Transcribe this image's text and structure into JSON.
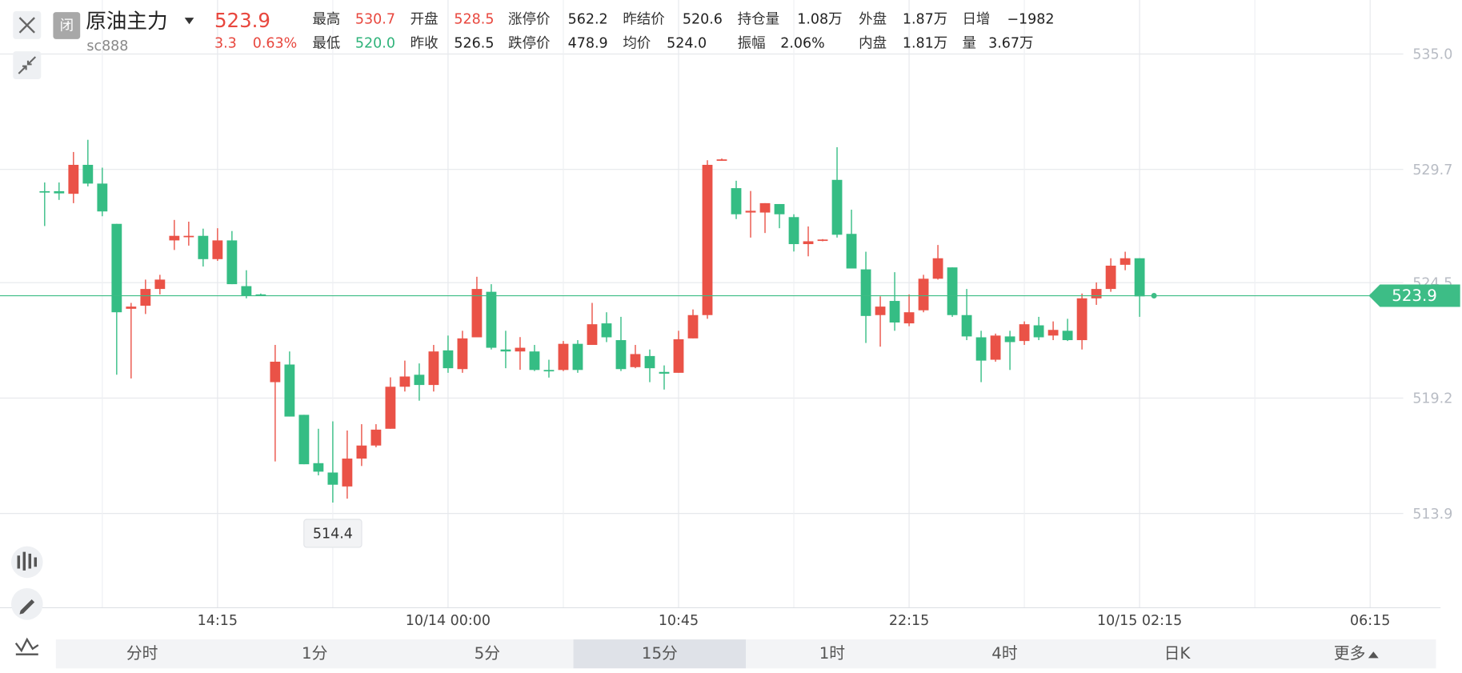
{
  "header": {
    "badge": "闭",
    "name": "原油主力",
    "symbol": "sc888",
    "price": "523.9",
    "change": "3.3",
    "change_pct": "0.63%",
    "stats": [
      [
        {
          "label": "最高",
          "value": "530.7",
          "color": "#e8473e"
        },
        {
          "label": "开盘",
          "value": "528.5",
          "color": "#e8473e"
        },
        {
          "label": "涨停价",
          "value": "562.2",
          "color": "#222"
        },
        {
          "label": "昨结价",
          "value": "520.6",
          "color": "#222"
        },
        {
          "label": "持仓量",
          "value": "1.08万",
          "color": "#222"
        },
        {
          "label": "外盘",
          "value": "1.87万",
          "color": "#222"
        },
        {
          "label": "日增",
          "value": "−1982",
          "color": "#222"
        }
      ],
      [
        {
          "label": "最低",
          "value": "520.0",
          "color": "#2fb37a"
        },
        {
          "label": "昨收",
          "value": "526.5",
          "color": "#222"
        },
        {
          "label": "跌停价",
          "value": "478.9",
          "color": "#222"
        },
        {
          "label": "均价",
          "value": "524.0",
          "color": "#222"
        },
        {
          "label": "振幅",
          "value": "2.06%",
          "color": "#222"
        },
        {
          "label": "内盘",
          "value": "1.81万",
          "color": "#222"
        },
        {
          "label": "量",
          "value": "3.67万",
          "color": "#222"
        }
      ]
    ]
  },
  "chart_data": {
    "type": "candlestick",
    "up_color": "#ea5247",
    "down_color": "#35bd84",
    "candles": {
      "open": [
        528.7,
        528.7,
        528.58,
        529.91,
        529.05,
        527.2,
        523.3,
        523.44,
        524.21,
        526.44,
        526.6,
        526.65,
        525.58,
        526.44,
        524.34,
        523.96,
        519.93,
        520.74,
        518.43,
        516.21,
        515.78,
        515.14,
        516.42,
        517.02,
        517.79,
        519.72,
        520.27,
        519.8,
        521.39,
        520.53,
        521.99,
        524.08,
        521.43,
        521.34,
        521.34,
        520.49,
        520.49,
        521.69,
        521.64,
        522.63,
        521.86,
        520.62,
        521.13,
        520.4,
        520.36,
        521.94,
        523.01,
        530.1,
        528.84,
        527.72,
        527.72,
        528.11,
        527.51,
        526.27,
        526.44,
        529.22,
        526.74,
        525.11,
        523.01,
        523.66,
        522.63,
        523.23,
        524.68,
        525.2,
        523.01,
        521.99,
        520.96,
        522.03,
        521.82,
        522.54,
        522.07,
        522.29,
        521.86,
        523.78,
        524.21,
        525.32,
        525.62
      ],
      "high": [
        529.1,
        529.1,
        530.5,
        531.06,
        529.78,
        527.2,
        523.57,
        524.64,
        524.86,
        527.38,
        527.3,
        526.98,
        527.0,
        526.87,
        525.07,
        524.0,
        521.64,
        521.34,
        518.43,
        517.79,
        518.13,
        517.71,
        518.0,
        518.0,
        520.15,
        520.92,
        520.79,
        521.64,
        522.07,
        522.29,
        524.77,
        524.43,
        522.29,
        522.0,
        521.64,
        520.96,
        521.82,
        521.86,
        523.57,
        523.14,
        522.93,
        521.64,
        521.43,
        520.7,
        522.29,
        523.27,
        530.12,
        530.2,
        529.18,
        528.71,
        528.15,
        528.11,
        527.64,
        527.08,
        526.5,
        530.72,
        527.85,
        525.92,
        523.87,
        524.98,
        523.96,
        524.86,
        526.23,
        525.2,
        524.21,
        522.29,
        522.16,
        522.29,
        522.72,
        522.93,
        522.72,
        522.84,
        524.0,
        524.51,
        525.62,
        525.92,
        525.62
      ],
      "low": [
        527.1,
        528.3,
        528.15,
        528.92,
        527.55,
        520.27,
        520.1,
        523.06,
        523.96,
        526.0,
        526.2,
        525.24,
        525.5,
        524.43,
        523.78,
        523.9,
        516.29,
        518.35,
        516.16,
        515.65,
        514.4,
        514.58,
        516.08,
        516.94,
        517.79,
        519.5,
        519.08,
        519.5,
        520.36,
        520.36,
        521.99,
        521.43,
        520.57,
        520.5,
        520.44,
        520.14,
        520.44,
        520.36,
        521.64,
        521.77,
        520.44,
        520.57,
        519.93,
        519.59,
        520.36,
        521.94,
        522.84,
        530.1,
        527.42,
        526.57,
        526.78,
        527.0,
        525.93,
        525.71,
        526.4,
        526.57,
        525.15,
        521.73,
        521.56,
        522.29,
        522.5,
        523.14,
        524.64,
        522.93,
        521.86,
        519.93,
        520.87,
        520.49,
        521.64,
        521.86,
        521.86,
        521.82,
        521.43,
        523.48,
        524.08,
        525.07,
        522.93
      ],
      "close": [
        528.7,
        528.6,
        529.91,
        529.05,
        527.77,
        523.14,
        523.4,
        524.21,
        524.64,
        526.65,
        526.65,
        525.58,
        526.44,
        524.43,
        523.91,
        523.91,
        520.87,
        518.35,
        516.16,
        515.82,
        515.22,
        516.42,
        517.02,
        517.75,
        519.72,
        520.19,
        519.8,
        521.34,
        520.57,
        521.94,
        524.21,
        521.51,
        521.34,
        521.51,
        520.49,
        520.44,
        521.69,
        520.49,
        522.59,
        521.99,
        520.53,
        521.22,
        520.57,
        520.32,
        521.9,
        523.01,
        529.91,
        530.16,
        527.64,
        527.8,
        528.15,
        527.64,
        526.27,
        526.4,
        526.48,
        526.7,
        525.15,
        522.97,
        523.4,
        522.67,
        523.14,
        524.68,
        525.62,
        523.01,
        522.03,
        520.92,
        522.07,
        521.77,
        522.59,
        521.99,
        522.33,
        521.86,
        523.78,
        524.21,
        525.28,
        525.62,
        523.87
      ]
    },
    "last_price": 523.9,
    "last_color": "#3dbd86",
    "annotation": "514.4",
    "xlim": [
      -3.1,
      94.3
    ],
    "ylim": [
      509.57,
      537.48
    ],
    "xticks": [
      {
        "value": 12,
        "label": "14:15"
      },
      {
        "value": 28,
        "label": "10/14 00:00"
      },
      {
        "value": 44,
        "label": "10:45"
      },
      {
        "value": 60,
        "label": "22:15"
      },
      {
        "value": 76,
        "label": "10/15 02:15"
      },
      {
        "value": 92,
        "label": "06:15"
      }
    ],
    "yticks": [
      {
        "value": 535,
        "label": "535.0"
      },
      529.7,
      524.5,
      519.2,
      513.9
    ],
    "grid": true
  },
  "tabs": {
    "items": [
      "分时",
      "1分",
      "5分",
      "15分",
      "1时",
      "4时",
      "日K",
      "更多"
    ],
    "active": 3
  }
}
